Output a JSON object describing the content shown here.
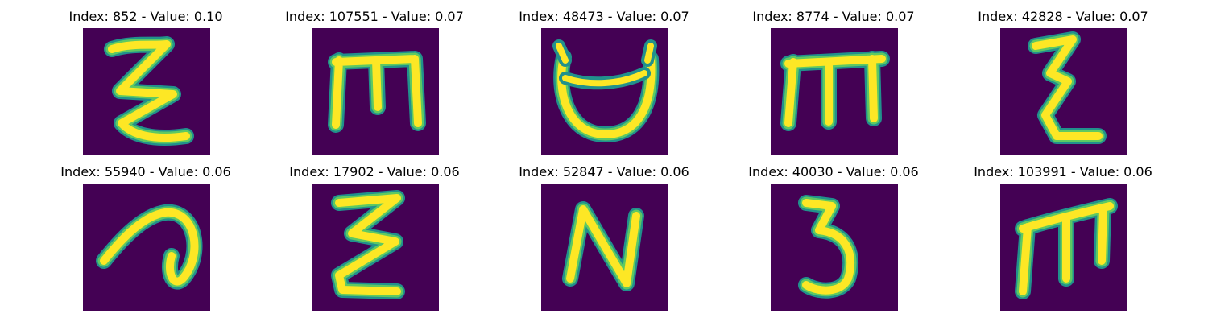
{
  "colors": {
    "background": "#440154",
    "stroke_edge": "#21918c",
    "stroke_mid": "#5ec962",
    "stroke_core": "#fde725"
  },
  "panels": [
    {
      "title": "Index: 852 - Value: 0.10",
      "glyph": "zigzag-z-shape"
    },
    {
      "title": "Index: 107551 - Value: 0.07",
      "glyph": "m-shape-with-top-bar"
    },
    {
      "title": "Index: 48473 - Value: 0.07",
      "glyph": "cup-u-shape"
    },
    {
      "title": "Index: 8774 - Value: 0.07",
      "glyph": "m-shape-with-top-bar"
    },
    {
      "title": "Index: 42828 - Value: 0.07",
      "glyph": "epsilon-z-shape"
    },
    {
      "title": "Index: 55940 - Value: 0.06",
      "glyph": "curl-a-shape"
    },
    {
      "title": "Index: 17902 - Value: 0.06",
      "glyph": "epsilon-z-shape"
    },
    {
      "title": "Index: 52847 - Value: 0.06",
      "glyph": "n-shape"
    },
    {
      "title": "Index: 40030 - Value: 0.06",
      "glyph": "three-shape"
    },
    {
      "title": "Index: 103991 - Value: 0.06",
      "glyph": "m-shape-with-top-bar"
    }
  ]
}
